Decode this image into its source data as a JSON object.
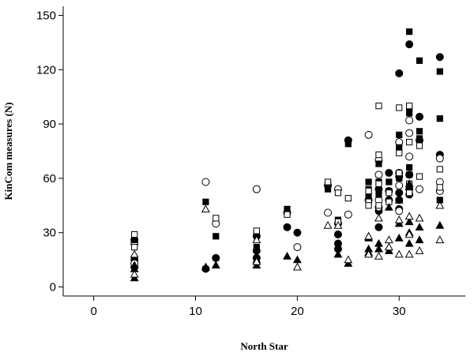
{
  "chart_data": {
    "type": "scatter",
    "xlabel": "North Star",
    "ylabel": "KinCom measures (N)",
    "xlim": [
      -3,
      36.5
    ],
    "ylim": [
      -5,
      155
    ],
    "xticks": [
      0,
      10,
      20,
      30
    ],
    "yticks": [
      0,
      30,
      60,
      90,
      120,
      150
    ],
    "grid": false,
    "legend": "none",
    "series": [
      {
        "marker": "filled-circle",
        "points": [
          [
            4,
            26
          ],
          [
            4,
            15
          ],
          [
            4,
            11
          ],
          [
            11,
            10
          ],
          [
            12,
            16
          ],
          [
            16,
            28
          ],
          [
            16,
            20
          ],
          [
            16,
            16
          ],
          [
            19,
            33
          ],
          [
            20,
            30
          ],
          [
            23,
            56
          ],
          [
            24,
            29
          ],
          [
            24,
            24
          ],
          [
            24,
            21
          ],
          [
            25,
            81
          ],
          [
            27,
            48
          ],
          [
            28,
            54
          ],
          [
            28,
            42
          ],
          [
            28,
            33
          ],
          [
            29,
            63
          ],
          [
            29,
            48
          ],
          [
            30,
            118
          ],
          [
            30,
            61
          ],
          [
            30,
            52
          ],
          [
            30,
            48
          ],
          [
            30,
            43
          ],
          [
            31,
            134
          ],
          [
            31,
            51
          ],
          [
            32,
            94
          ],
          [
            32,
            81
          ],
          [
            34,
            127
          ],
          [
            34,
            73
          ]
        ]
      },
      {
        "marker": "open-circle",
        "points": [
          [
            4,
            24
          ],
          [
            4,
            13
          ],
          [
            11,
            58
          ],
          [
            12,
            35
          ],
          [
            16,
            54
          ],
          [
            19,
            41
          ],
          [
            20,
            22
          ],
          [
            23,
            41
          ],
          [
            24,
            54
          ],
          [
            24,
            35
          ],
          [
            25,
            40
          ],
          [
            27,
            84
          ],
          [
            28,
            70
          ],
          [
            28,
            62
          ],
          [
            28,
            48
          ],
          [
            28,
            44
          ],
          [
            29,
            53
          ],
          [
            30,
            80
          ],
          [
            30,
            63
          ],
          [
            30,
            56
          ],
          [
            30,
            42
          ],
          [
            31,
            92
          ],
          [
            31,
            85
          ],
          [
            31,
            72
          ],
          [
            31,
            62
          ],
          [
            31,
            54
          ],
          [
            32,
            54
          ],
          [
            34,
            71
          ],
          [
            34,
            58
          ],
          [
            34,
            53
          ]
        ]
      },
      {
        "marker": "filled-square",
        "points": [
          [
            4,
            26
          ],
          [
            11,
            47
          ],
          [
            12,
            28
          ],
          [
            16,
            29
          ],
          [
            16,
            22
          ],
          [
            19,
            43
          ],
          [
            23,
            57
          ],
          [
            23,
            54
          ],
          [
            24,
            37
          ],
          [
            25,
            79
          ],
          [
            27,
            58
          ],
          [
            27,
            54
          ],
          [
            27,
            50
          ],
          [
            28,
            68
          ],
          [
            28,
            58
          ],
          [
            28,
            51
          ],
          [
            29,
            58
          ],
          [
            29,
            53
          ],
          [
            30,
            84
          ],
          [
            30,
            77
          ],
          [
            30,
            60
          ],
          [
            31,
            141
          ],
          [
            31,
            99
          ],
          [
            31,
            96
          ],
          [
            31,
            66
          ],
          [
            31,
            62
          ],
          [
            31,
            55
          ],
          [
            32,
            125
          ],
          [
            32,
            86
          ],
          [
            32,
            82
          ],
          [
            34,
            119
          ],
          [
            34,
            93
          ],
          [
            34,
            48
          ]
        ]
      },
      {
        "marker": "open-square",
        "points": [
          [
            4,
            29
          ],
          [
            4,
            22
          ],
          [
            12,
            38
          ],
          [
            16,
            31
          ],
          [
            19,
            40
          ],
          [
            23,
            58
          ],
          [
            24,
            52
          ],
          [
            24,
            36
          ],
          [
            25,
            49
          ],
          [
            27,
            53
          ],
          [
            27,
            47
          ],
          [
            27,
            45
          ],
          [
            28,
            100
          ],
          [
            28,
            73
          ],
          [
            28,
            57
          ],
          [
            28,
            45
          ],
          [
            29,
            52
          ],
          [
            29,
            47
          ],
          [
            30,
            99
          ],
          [
            30,
            74
          ],
          [
            30,
            63
          ],
          [
            31,
            100
          ],
          [
            31,
            80
          ],
          [
            31,
            57
          ],
          [
            31,
            52
          ],
          [
            32,
            78
          ],
          [
            32,
            61
          ],
          [
            34,
            65
          ],
          [
            34,
            55
          ]
        ]
      },
      {
        "marker": "filled-triangle",
        "points": [
          [
            4,
            12
          ],
          [
            4,
            10
          ],
          [
            4,
            5
          ],
          [
            11,
            11
          ],
          [
            12,
            12
          ],
          [
            16,
            15
          ],
          [
            16,
            12
          ],
          [
            19,
            17
          ],
          [
            20,
            15
          ],
          [
            24,
            18
          ],
          [
            25,
            13
          ],
          [
            27,
            27
          ],
          [
            27,
            21
          ],
          [
            27,
            19
          ],
          [
            28,
            24
          ],
          [
            28,
            21
          ],
          [
            29,
            44
          ],
          [
            29,
            20
          ],
          [
            30,
            48
          ],
          [
            30,
            35
          ],
          [
            30,
            27
          ],
          [
            31,
            57
          ],
          [
            31,
            36
          ],
          [
            31,
            30
          ],
          [
            31,
            24
          ],
          [
            32,
            33
          ],
          [
            32,
            26
          ],
          [
            34,
            34
          ]
        ]
      },
      {
        "marker": "open-triangle",
        "points": [
          [
            4,
            18
          ],
          [
            4,
            7
          ],
          [
            11,
            43
          ],
          [
            16,
            26
          ],
          [
            16,
            14
          ],
          [
            20,
            11
          ],
          [
            23,
            34
          ],
          [
            24,
            34
          ],
          [
            25,
            15
          ],
          [
            27,
            28
          ],
          [
            27,
            18
          ],
          [
            28,
            38
          ],
          [
            28,
            17
          ],
          [
            29,
            26
          ],
          [
            29,
            22
          ],
          [
            30,
            37
          ],
          [
            30,
            18
          ],
          [
            31,
            39
          ],
          [
            31,
            29
          ],
          [
            31,
            18
          ],
          [
            32,
            38
          ],
          [
            32,
            20
          ],
          [
            34,
            45
          ],
          [
            34,
            26
          ]
        ]
      }
    ]
  }
}
